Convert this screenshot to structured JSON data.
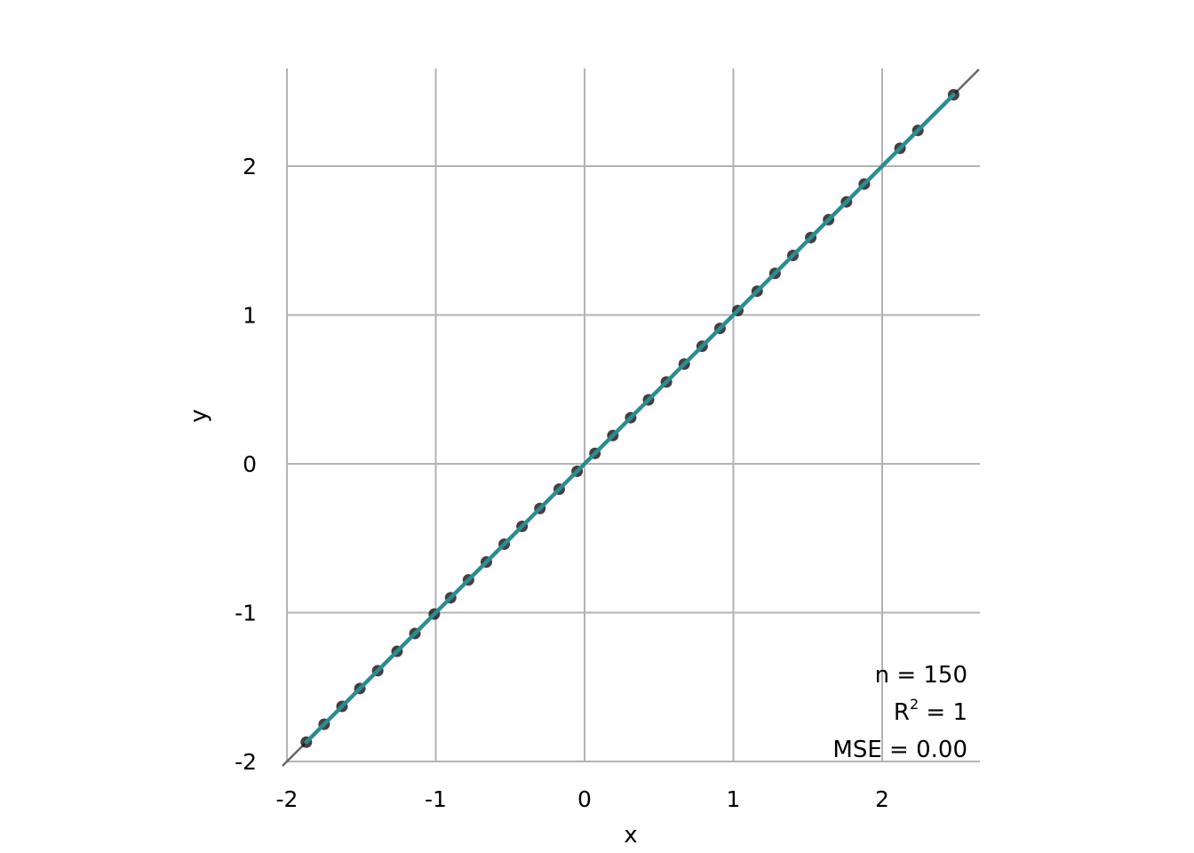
{
  "chart_data": {
    "type": "scatter",
    "title": "",
    "xlabel": "x",
    "ylabel": "y",
    "xlim": [
      -2,
      2.65
    ],
    "ylim": [
      -2,
      2.65
    ],
    "x_ticks": [
      "-2",
      "-1",
      "0",
      "1",
      "2"
    ],
    "y_ticks": [
      "-2",
      "-1",
      "0",
      "1",
      "2"
    ],
    "x_tick_values": [
      -2,
      -1,
      0,
      1,
      2
    ],
    "y_tick_values": [
      -2,
      -1,
      0,
      1,
      2
    ],
    "grid": true,
    "points": {
      "x": [
        -1.87,
        -1.75,
        -1.63,
        -1.51,
        -1.39,
        -1.26,
        -1.14,
        -1.01,
        -0.9,
        -0.78,
        -0.66,
        -0.54,
        -0.42,
        -0.3,
        -0.17,
        -0.05,
        0.07,
        0.19,
        0.31,
        0.43,
        0.55,
        0.67,
        0.79,
        0.91,
        1.03,
        1.16,
        1.28,
        1.4,
        1.52,
        1.64,
        1.76,
        1.88,
        2.12,
        2.24,
        2.48
      ],
      "y": [
        -1.87,
        -1.75,
        -1.63,
        -1.51,
        -1.39,
        -1.26,
        -1.14,
        -1.01,
        -0.9,
        -0.78,
        -0.66,
        -0.54,
        -0.42,
        -0.3,
        -0.17,
        -0.05,
        0.07,
        0.19,
        0.31,
        0.43,
        0.55,
        0.67,
        0.79,
        0.91,
        1.03,
        1.16,
        1.28,
        1.4,
        1.52,
        1.64,
        1.76,
        1.88,
        2.12,
        2.24,
        2.48
      ]
    },
    "identity_line": {
      "from": [
        -2.03,
        -2.03
      ],
      "to": [
        2.65,
        2.65
      ],
      "color": "#666666"
    },
    "fit_line": {
      "from": [
        -1.87,
        -1.87
      ],
      "to": [
        2.48,
        2.48
      ],
      "color": "#2e8b8e"
    },
    "point_color": "#111111",
    "annotations": {
      "n": "n = 150",
      "r2_base": "R",
      "r2_sup": "2",
      "r2_rest": " = 1",
      "mse": "MSE = 0.00"
    },
    "legend": "none"
  }
}
